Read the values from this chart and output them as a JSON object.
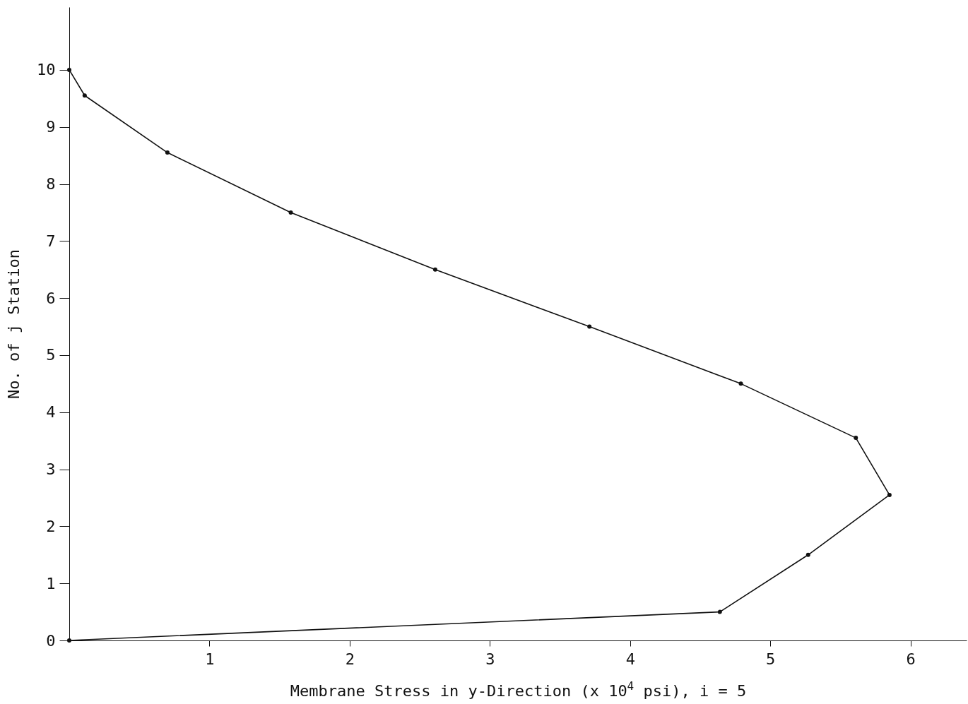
{
  "chart_data": {
    "type": "line",
    "xlabel": "Membrane Stress in y-Direction (x 10$^{4}$ psi), i = 5",
    "ylabel": "No. of j Station",
    "series": [
      {
        "color": "#111111",
        "x": [
          0,
          0.11,
          0.7,
          1.58,
          2.61,
          3.71,
          4.79,
          5.61,
          5.85,
          5.27,
          4.64,
          0
        ],
        "values": [
          10,
          9.55,
          8.55,
          7.5,
          6.5,
          5.5,
          4.5,
          3.55,
          2.55,
          1.5,
          0.5,
          0
        ]
      }
    ],
    "xlim": [
      0,
      6.4
    ],
    "xticks": [
      1,
      2,
      3,
      4,
      5,
      6
    ],
    "ylim": [
      0,
      11.1
    ],
    "yticks": [
      0,
      1,
      2,
      3,
      4,
      5,
      6,
      7,
      8,
      9,
      10
    ],
    "grid": false,
    "legend": false,
    "marker": "circle",
    "line_style": "solid"
  }
}
